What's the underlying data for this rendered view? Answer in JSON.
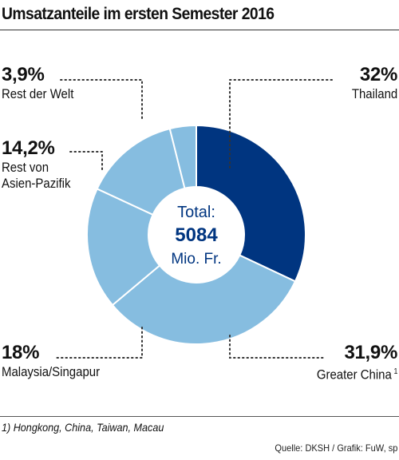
{
  "title": "Umsatzanteile im ersten Semester 2016",
  "footnote": "1) Hongkong, China, Taiwan, Macau",
  "source": "Quelle: DKSH / Grafik: FuW, sp",
  "colors": {
    "dark": "#003580",
    "light": "#86bde0",
    "dots": "#333333"
  },
  "chart_data": {
    "type": "pie",
    "variant": "donut",
    "center": {
      "line1": "Total:",
      "line2": "5084",
      "line3": "Mio. Fr."
    },
    "slices": [
      {
        "label": "Thailand",
        "value_label": "32%",
        "value": 32.0,
        "color": "#003580"
      },
      {
        "label": "Greater China",
        "superscript": "1",
        "value_label": "31,9%",
        "value": 31.9,
        "color": "#86bde0"
      },
      {
        "label": "Malaysia/Singapur",
        "value_label": "18%",
        "value": 18.0,
        "color": "#86bde0"
      },
      {
        "label": "Rest von Asien-Pazifik",
        "label_lines": [
          "Rest von",
          "Asien-Pazifik"
        ],
        "value_label": "14,2%",
        "value": 14.2,
        "color": "#86bde0"
      },
      {
        "label": "Rest der Welt",
        "value_label": "3,9%",
        "value": 3.9,
        "color": "#86bde0"
      }
    ]
  }
}
